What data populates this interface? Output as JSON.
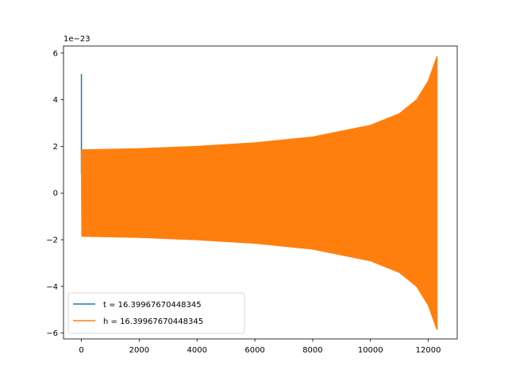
{
  "chart_data": {
    "type": "line",
    "title": "",
    "xlabel": "",
    "ylabel": "",
    "y_offset_label": "1e−23",
    "xlim": [
      -620,
      13000
    ],
    "ylim": [
      -6.25,
      6.3
    ],
    "x_ticks": [
      0,
      2000,
      4000,
      6000,
      8000,
      10000,
      12000
    ],
    "x_tick_labels": [
      "0",
      "2000",
      "4000",
      "6000",
      "8000",
      "10000",
      "12000"
    ],
    "y_ticks": [
      -6,
      -4,
      -2,
      0,
      2,
      4,
      6
    ],
    "y_tick_labels": [
      "−6",
      "−4",
      "−2",
      "0",
      "2",
      "4",
      "6"
    ],
    "grid": false,
    "legend_position": "lower-left",
    "series": [
      {
        "name": "t = 16.39967670448345",
        "color": "#1f77b4",
        "description_points": [
          {
            "x": 0,
            "y": 0.8
          },
          {
            "x": 0,
            "y": 5.1
          },
          {
            "x": 0,
            "y": 1.2
          }
        ]
      },
      {
        "name": "h = 16.39967670448345",
        "color": "#ff7f0e",
        "envelope": [
          {
            "x": 0,
            "amp": 1.85
          },
          {
            "x": 2000,
            "amp": 1.9
          },
          {
            "x": 4000,
            "amp": 2.0
          },
          {
            "x": 6000,
            "amp": 2.15
          },
          {
            "x": 8000,
            "amp": 2.4
          },
          {
            "x": 10000,
            "amp": 2.9
          },
          {
            "x": 11000,
            "amp": 3.4
          },
          {
            "x": 11600,
            "amp": 4.0
          },
          {
            "x": 12000,
            "amp": 4.8
          },
          {
            "x": 12300,
            "amp": 5.85
          }
        ],
        "x_end": 12300
      }
    ]
  }
}
